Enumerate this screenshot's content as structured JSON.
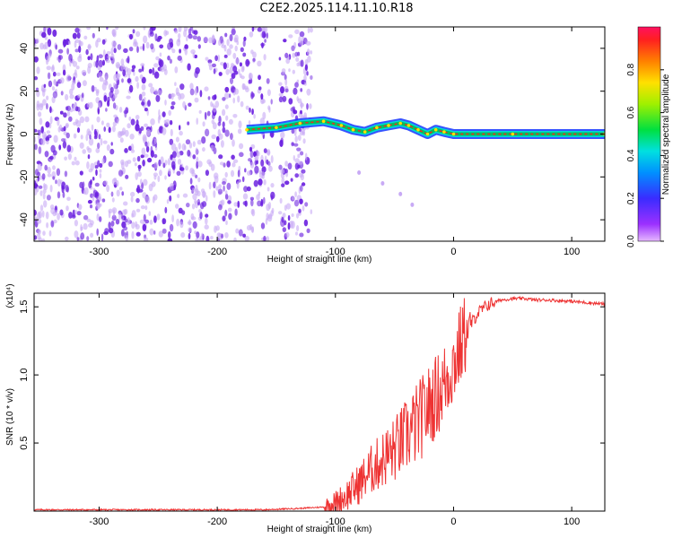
{
  "title": "C2E2.2025.114.11.10.R18",
  "colors": {
    "snr_line": "#ee3333",
    "spectro_dots": "#6a1fe0",
    "spectro_faint": "#c8aaf5",
    "trace_band": "#00c060"
  },
  "chart_data": [
    {
      "type": "heatmap",
      "xlabel": "Height of straight line (km)",
      "ylabel": "Frequency (Hz)",
      "xlim": [
        -355,
        128
      ],
      "ylim": [
        -50,
        50
      ],
      "xticks": [
        -300,
        -200,
        -100,
        0,
        100
      ],
      "yticks": [
        -40,
        -20,
        0,
        20,
        40
      ],
      "grid": false,
      "colorbar": {
        "label": "Normalized spectral amplitude",
        "range": [
          0,
          1
        ],
        "ticks": [
          "0.0",
          "0.2",
          "0.4",
          "0.6",
          "0.8"
        ],
        "colormap": "rainbow (magenta-blue-cyan-green-yellow-orange-red)"
      },
      "noise_region_x": [
        -355,
        -120
      ],
      "trace": [
        {
          "x": -175,
          "y": 2
        },
        {
          "x": -150,
          "y": 3
        },
        {
          "x": -130,
          "y": 5
        },
        {
          "x": -110,
          "y": 6
        },
        {
          "x": -95,
          "y": 4
        },
        {
          "x": -85,
          "y": 2
        },
        {
          "x": -75,
          "y": 1
        },
        {
          "x": -65,
          "y": 3
        },
        {
          "x": -55,
          "y": 4
        },
        {
          "x": -45,
          "y": 5
        },
        {
          "x": -38,
          "y": 4
        },
        {
          "x": -30,
          "y": 2
        },
        {
          "x": -22,
          "y": 0
        },
        {
          "x": -15,
          "y": 2
        },
        {
          "x": -8,
          "y": 1
        },
        {
          "x": 0,
          "y": 0
        },
        {
          "x": 50,
          "y": 0
        },
        {
          "x": 128,
          "y": 0
        }
      ],
      "side_branch": [
        {
          "x": -80,
          "y": -18
        },
        {
          "x": -60,
          "y": -23
        },
        {
          "x": -45,
          "y": -28
        },
        {
          "x": -35,
          "y": -33
        }
      ]
    },
    {
      "type": "line",
      "xlabel": "Height of straight line (km)",
      "ylabel": "SNR (10 * v/v)",
      "y_multiplier": "(x10⁴)",
      "xlim": [
        -355,
        128
      ],
      "ylim": [
        0,
        1.6
      ],
      "xticks": [
        -300,
        -200,
        -100,
        0,
        100
      ],
      "yticks": [
        "0.5",
        "1.0",
        "1.5"
      ],
      "grid": false,
      "series": [
        {
          "x": [
            -355,
            -300,
            -250,
            -200,
            -160,
            -130,
            -110,
            -100,
            -90,
            -80,
            -70,
            -60,
            -50,
            -40,
            -30,
            -20,
            -10,
            0,
            10,
            20,
            30,
            40,
            50,
            60,
            70,
            80,
            100,
            128
          ],
          "values": [
            0.01,
            0.01,
            0.01,
            0.01,
            0.01,
            0.02,
            0.03,
            0.06,
            0.12,
            0.2,
            0.3,
            0.38,
            0.45,
            0.55,
            0.65,
            0.78,
            0.9,
            1.08,
            1.3,
            1.45,
            1.52,
            1.55,
            1.56,
            1.56,
            1.55,
            1.55,
            1.54,
            1.52
          ]
        }
      ]
    }
  ]
}
